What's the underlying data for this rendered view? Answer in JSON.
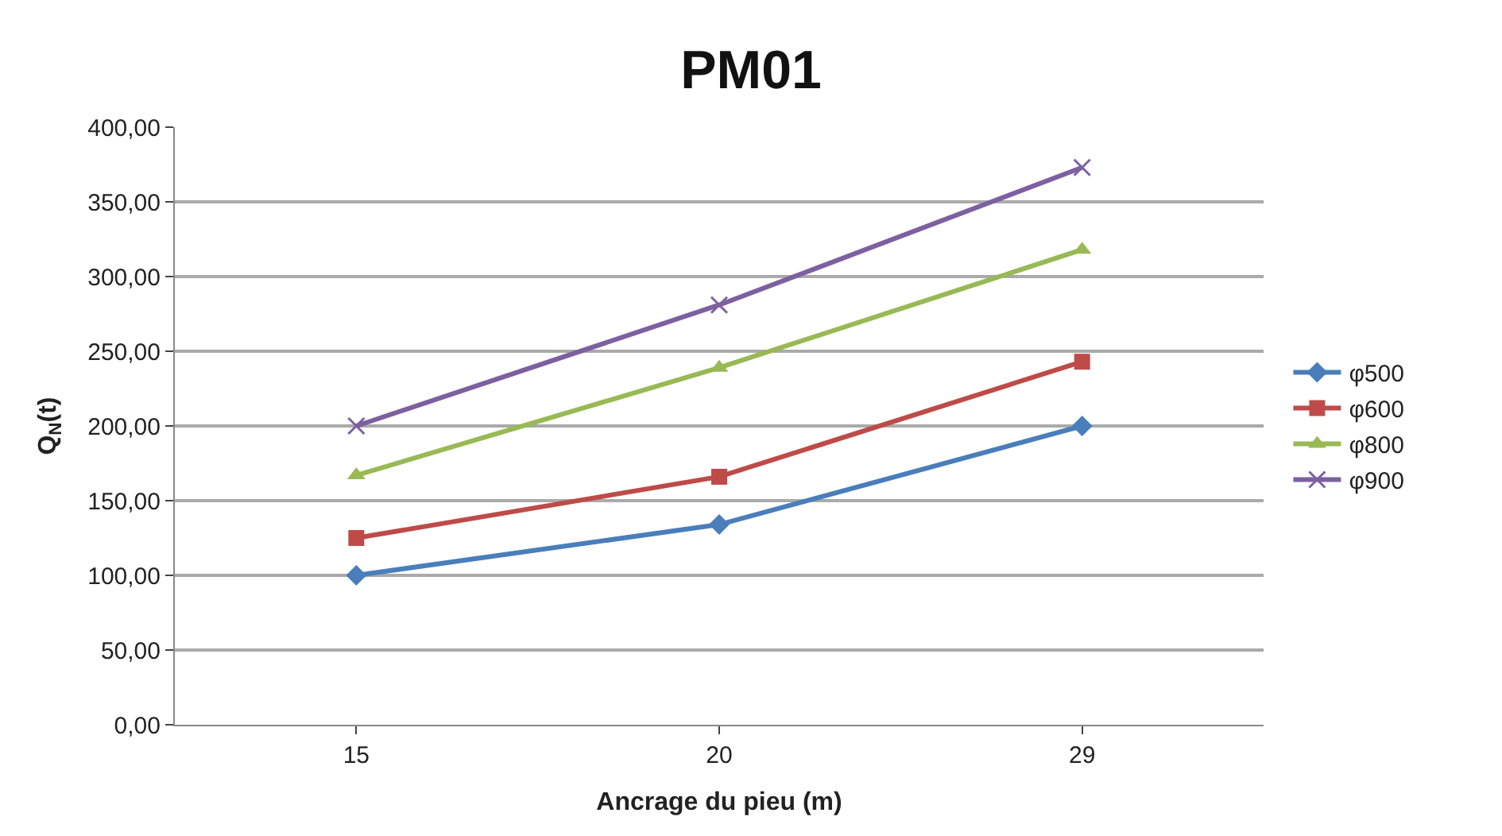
{
  "chart_data": {
    "type": "line",
    "title": "PM01",
    "xlabel": "Ancrage du pieu (m)",
    "ylabel": "Q$_{N}$(t)",
    "categories": [
      "15",
      "20",
      "29"
    ],
    "series": [
      {
        "name": "φ500",
        "color": "#4a7ebb",
        "marker": "diamond",
        "values": [
          100,
          134,
          200
        ]
      },
      {
        "name": "φ600",
        "color": "#be4b48",
        "marker": "square",
        "values": [
          125,
          166,
          243
        ]
      },
      {
        "name": "φ800",
        "color": "#98b954",
        "marker": "triangle",
        "values": [
          167,
          239,
          318
        ]
      },
      {
        "name": "φ900",
        "color": "#7d60a0",
        "marker": "cross",
        "values": [
          200,
          281,
          373
        ]
      }
    ],
    "ylim": [
      0,
      400
    ],
    "yticks": [
      {
        "value": 0,
        "label": "0,00"
      },
      {
        "value": 50,
        "label": "50,00"
      },
      {
        "value": 100,
        "label": "100,00"
      },
      {
        "value": 150,
        "label": "150,00"
      },
      {
        "value": 200,
        "label": "200,00"
      },
      {
        "value": 250,
        "label": "250,00"
      },
      {
        "value": 300,
        "label": "300,00"
      },
      {
        "value": 350,
        "label": "350,00"
      },
      {
        "value": 400,
        "label": "400,00"
      }
    ],
    "grid": "y",
    "legend": "right",
    "line_style": "solid"
  }
}
